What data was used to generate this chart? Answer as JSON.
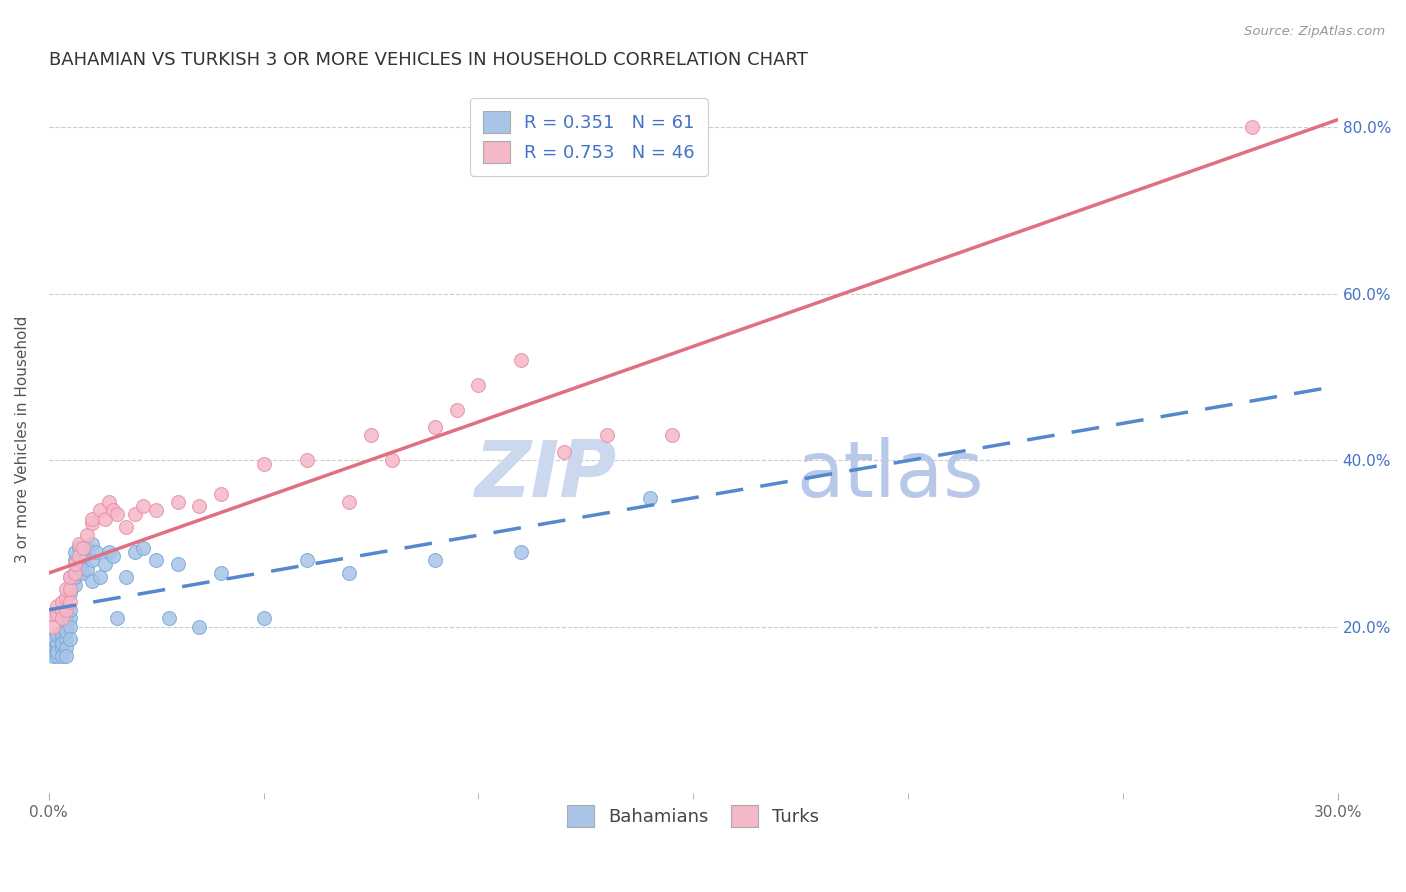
{
  "title": "BAHAMIAN VS TURKISH 3 OR MORE VEHICLES IN HOUSEHOLD CORRELATION CHART",
  "source": "Source: ZipAtlas.com",
  "ylabel": "3 or more Vehicles in Household",
  "xlim": [
    0.0,
    0.3
  ],
  "ylim": [
    0.0,
    0.85
  ],
  "xtick_vals": [
    0.0,
    0.3
  ],
  "xtick_labels": [
    "0.0%",
    "30.0%"
  ],
  "xtick_minor_vals": [
    0.05,
    0.1,
    0.15,
    0.2,
    0.25
  ],
  "ytick_vals_right": [
    0.2,
    0.4,
    0.6,
    0.8
  ],
  "ytick_labels_right": [
    "20.0%",
    "40.0%",
    "60.0%",
    "80.0%"
  ],
  "bahamian_dot_color": "#aac4e8",
  "bahamian_dot_edge": "#7aaad8",
  "turkish_dot_color": "#f5b8c8",
  "turkish_dot_edge": "#e890a8",
  "bahamian_line_color": "#5588cc",
  "turkish_line_color": "#e07080",
  "watermark_zip_color": "#ccd8ee",
  "watermark_atlas_color": "#b8c8e8",
  "legend_R_bahamian": "0.351",
  "legend_N_bahamian": "61",
  "legend_R_turkish": "0.753",
  "legend_N_turkish": "46",
  "legend_color": "#4472c4",
  "legend_num_color": "#4472c4",
  "bahamian_scatter_x": [
    0.001,
    0.001,
    0.001,
    0.002,
    0.002,
    0.002,
    0.002,
    0.002,
    0.003,
    0.003,
    0.003,
    0.003,
    0.003,
    0.003,
    0.004,
    0.004,
    0.004,
    0.004,
    0.004,
    0.004,
    0.004,
    0.005,
    0.005,
    0.005,
    0.005,
    0.005,
    0.005,
    0.006,
    0.006,
    0.006,
    0.006,
    0.007,
    0.007,
    0.007,
    0.008,
    0.008,
    0.009,
    0.009,
    0.01,
    0.01,
    0.01,
    0.011,
    0.012,
    0.013,
    0.014,
    0.015,
    0.016,
    0.018,
    0.02,
    0.022,
    0.025,
    0.028,
    0.03,
    0.035,
    0.04,
    0.05,
    0.06,
    0.07,
    0.09,
    0.11,
    0.14
  ],
  "bahamian_scatter_y": [
    0.175,
    0.165,
    0.185,
    0.175,
    0.18,
    0.19,
    0.165,
    0.17,
    0.195,
    0.185,
    0.175,
    0.165,
    0.19,
    0.18,
    0.195,
    0.2,
    0.185,
    0.175,
    0.21,
    0.195,
    0.165,
    0.21,
    0.22,
    0.2,
    0.185,
    0.24,
    0.26,
    0.25,
    0.26,
    0.28,
    0.29,
    0.275,
    0.265,
    0.295,
    0.28,
    0.265,
    0.27,
    0.295,
    0.3,
    0.28,
    0.255,
    0.29,
    0.26,
    0.275,
    0.29,
    0.285,
    0.21,
    0.26,
    0.29,
    0.295,
    0.28,
    0.21,
    0.275,
    0.2,
    0.265,
    0.21,
    0.28,
    0.265,
    0.28,
    0.29,
    0.355
  ],
  "turkish_scatter_x": [
    0.001,
    0.001,
    0.002,
    0.002,
    0.003,
    0.003,
    0.003,
    0.004,
    0.004,
    0.004,
    0.005,
    0.005,
    0.005,
    0.006,
    0.006,
    0.007,
    0.007,
    0.008,
    0.009,
    0.01,
    0.01,
    0.012,
    0.013,
    0.014,
    0.015,
    0.016,
    0.018,
    0.02,
    0.022,
    0.025,
    0.03,
    0.035,
    0.04,
    0.05,
    0.06,
    0.07,
    0.075,
    0.08,
    0.09,
    0.095,
    0.1,
    0.11,
    0.12,
    0.13,
    0.145,
    0.28
  ],
  "turkish_scatter_y": [
    0.2,
    0.215,
    0.215,
    0.225,
    0.22,
    0.23,
    0.21,
    0.22,
    0.235,
    0.245,
    0.23,
    0.245,
    0.26,
    0.265,
    0.275,
    0.285,
    0.3,
    0.295,
    0.31,
    0.325,
    0.33,
    0.34,
    0.33,
    0.35,
    0.34,
    0.335,
    0.32,
    0.335,
    0.345,
    0.34,
    0.35,
    0.345,
    0.36,
    0.395,
    0.4,
    0.35,
    0.43,
    0.4,
    0.44,
    0.46,
    0.49,
    0.52,
    0.41,
    0.43,
    0.43,
    0.8
  ],
  "title_fontsize": 13,
  "axis_label_fontsize": 11,
  "tick_fontsize": 11,
  "legend_fontsize": 13,
  "background_color": "#ffffff",
  "grid_color": "#cccccc"
}
